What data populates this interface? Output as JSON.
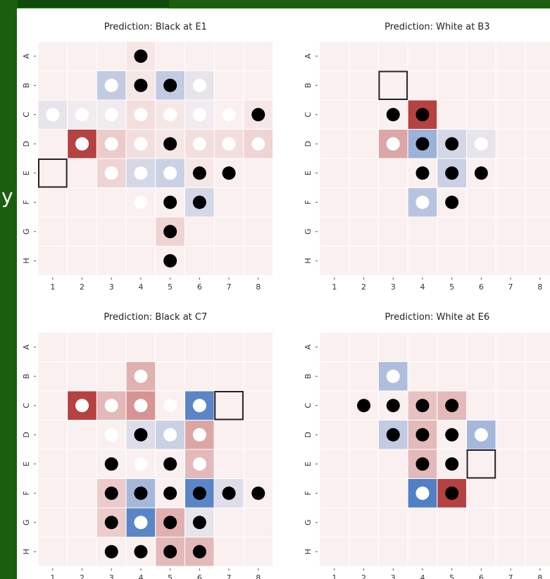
{
  "slide": {
    "partial_glyph": "y"
  },
  "colors": {
    "neutral_cell": "#faf0f0",
    "grid": "#ffffff",
    "red_strong": "#b23838",
    "red_medium": "#dba2a2",
    "red_light": "#f2d9d9",
    "blue_strong": "#3e73c0",
    "blue_medium": "#a5b7d6",
    "blue_light": "#d9e0ec",
    "piece_black": "#000000",
    "piece_white": "#ffffff",
    "move_box": "#222222"
  },
  "chart_data": [
    {
      "type": "heatmap",
      "title": "Prediction: Black at E1",
      "rows": [
        "A",
        "B",
        "C",
        "D",
        "E",
        "F",
        "G",
        "H"
      ],
      "cols": [
        "1",
        "2",
        "3",
        "4",
        "5",
        "6",
        "7",
        "8"
      ],
      "pieces": [
        [
          "",
          "",
          "",
          "b",
          "",
          "",
          "",
          ""
        ],
        [
          "",
          "",
          "w",
          "b",
          "b",
          "w",
          "",
          ""
        ],
        [
          "w",
          "w",
          "w",
          "w",
          "w",
          "w",
          "w",
          "b"
        ],
        [
          "",
          "w",
          "w",
          "w",
          "b",
          "w",
          "w",
          "w"
        ],
        [
          "",
          "",
          "w",
          "w",
          "w",
          "b",
          "b",
          ""
        ],
        [
          "",
          "",
          "",
          "w",
          "b",
          "b",
          "",
          ""
        ],
        [
          "",
          "",
          "",
          "",
          "b",
          "",
          "",
          ""
        ],
        [
          "",
          "",
          "",
          "",
          "b",
          "",
          "",
          ""
        ]
      ],
      "heat": [
        [
          0,
          0,
          0,
          0.05,
          0,
          0,
          0,
          0
        ],
        [
          0,
          0,
          -0.3,
          0.05,
          -0.3,
          -0.1,
          0,
          0
        ],
        [
          -0.1,
          -0.05,
          -0.05,
          0.1,
          0.05,
          -0.05,
          0,
          0.05
        ],
        [
          0,
          0.95,
          0.2,
          0.1,
          0.05,
          0.1,
          0.1,
          0.15
        ],
        [
          0,
          0,
          0.15,
          -0.2,
          -0.25,
          0.05,
          0,
          0
        ],
        [
          0,
          0,
          0,
          0,
          0,
          -0.2,
          0,
          0
        ],
        [
          0,
          0,
          0,
          0,
          0.15,
          0,
          0,
          0
        ],
        [
          0,
          0,
          0,
          0,
          0,
          0,
          0,
          0
        ]
      ],
      "move": {
        "row": "E",
        "col": "1"
      }
    },
    {
      "type": "heatmap",
      "title": "Prediction: White at B3",
      "rows": [
        "A",
        "B",
        "C",
        "D",
        "E",
        "F",
        "G",
        "H"
      ],
      "cols": [
        "1",
        "2",
        "3",
        "4",
        "5",
        "6",
        "7",
        "8"
      ],
      "pieces": [
        [
          "",
          "",
          "",
          "",
          "",
          "",
          "",
          ""
        ],
        [
          "",
          "",
          "",
          "",
          "",
          "",
          "",
          ""
        ],
        [
          "",
          "",
          "b",
          "b",
          "",
          "",
          "",
          ""
        ],
        [
          "",
          "",
          "w",
          "b",
          "b",
          "w",
          "",
          ""
        ],
        [
          "",
          "",
          "",
          "b",
          "b",
          "b",
          "",
          ""
        ],
        [
          "",
          "",
          "",
          "w",
          "b",
          "",
          "",
          ""
        ],
        [
          "",
          "",
          "",
          "",
          "",
          "",
          "",
          ""
        ],
        [
          "",
          "",
          "",
          "",
          "",
          "",
          "",
          ""
        ]
      ],
      "heat": [
        [
          0,
          0,
          0,
          0,
          0,
          0,
          0,
          0
        ],
        [
          0,
          0,
          0,
          0,
          0,
          0,
          0,
          0
        ],
        [
          0,
          0,
          0,
          0.95,
          0,
          0,
          0,
          0
        ],
        [
          0,
          0,
          0.4,
          -0.5,
          -0.2,
          -0.1,
          0,
          0
        ],
        [
          0,
          0,
          0,
          0,
          -0.25,
          0,
          0,
          0
        ],
        [
          0,
          0,
          0,
          -0.35,
          0,
          0,
          0,
          0
        ],
        [
          0,
          0,
          0,
          0,
          0,
          0,
          0,
          0
        ],
        [
          0,
          0,
          0,
          0,
          0,
          0,
          0,
          0
        ]
      ],
      "move": {
        "row": "B",
        "col": "3"
      }
    },
    {
      "type": "heatmap",
      "title": "Prediction: Black at C7",
      "rows": [
        "A",
        "B",
        "C",
        "D",
        "E",
        "F",
        "G",
        "H"
      ],
      "cols": [
        "1",
        "2",
        "3",
        "4",
        "5",
        "6",
        "7",
        "8"
      ],
      "pieces": [
        [
          "",
          "",
          "",
          "",
          "",
          "",
          "",
          ""
        ],
        [
          "",
          "",
          "",
          "w",
          "",
          "",
          "",
          ""
        ],
        [
          "",
          "w",
          "w",
          "w",
          "w",
          "w",
          "",
          ""
        ],
        [
          "",
          "",
          "w",
          "b",
          "w",
          "w",
          "",
          ""
        ],
        [
          "",
          "",
          "b",
          "w",
          "b",
          "w",
          "",
          ""
        ],
        [
          "",
          "",
          "b",
          "b",
          "b",
          "b",
          "b",
          "b"
        ],
        [
          "",
          "",
          "b",
          "w",
          "b",
          "b",
          "",
          ""
        ],
        [
          "",
          "",
          "b",
          "b",
          "b",
          "b",
          "",
          ""
        ]
      ],
      "heat": [
        [
          0,
          0,
          0,
          0,
          0,
          0,
          0,
          0
        ],
        [
          0,
          0,
          0,
          0.35,
          0,
          0,
          0,
          0
        ],
        [
          0,
          0.95,
          0.3,
          0.5,
          0,
          -0.85,
          0,
          0
        ],
        [
          0,
          0,
          0,
          -0.15,
          -0.25,
          0.4,
          0,
          0
        ],
        [
          0,
          0,
          0,
          0,
          0,
          0.3,
          0,
          0
        ],
        [
          0,
          0,
          0.2,
          -0.45,
          0,
          -0.85,
          -0.15,
          0
        ],
        [
          0,
          0,
          0.2,
          -0.85,
          0.35,
          -0.1,
          0,
          0
        ],
        [
          0,
          0,
          0,
          0,
          0.3,
          0.3,
          0,
          0
        ]
      ],
      "move": {
        "row": "C",
        "col": "7"
      }
    },
    {
      "type": "heatmap",
      "title": "Prediction: White at E6",
      "rows": [
        "A",
        "B",
        "C",
        "D",
        "E",
        "F",
        "G",
        "H"
      ],
      "cols": [
        "1",
        "2",
        "3",
        "4",
        "5",
        "6",
        "7",
        "8"
      ],
      "pieces": [
        [
          "",
          "",
          "",
          "",
          "",
          "",
          "",
          ""
        ],
        [
          "",
          "",
          "w",
          "",
          "",
          "",
          "",
          ""
        ],
        [
          "",
          "b",
          "b",
          "b",
          "b",
          "",
          "",
          ""
        ],
        [
          "",
          "",
          "b",
          "b",
          "b",
          "w",
          "",
          ""
        ],
        [
          "",
          "",
          "",
          "b",
          "b",
          "",
          "",
          ""
        ],
        [
          "",
          "",
          "",
          "w",
          "b",
          "",
          "",
          ""
        ],
        [
          "",
          "",
          "",
          "",
          "",
          "",
          "",
          ""
        ],
        [
          "",
          "",
          "",
          "",
          "",
          "",
          "",
          ""
        ]
      ],
      "heat": [
        [
          0,
          0,
          0,
          0,
          0,
          0,
          0,
          0
        ],
        [
          0,
          0,
          -0.4,
          0,
          0,
          0,
          0,
          0
        ],
        [
          0,
          0,
          0,
          0.25,
          0.3,
          0,
          0,
          0
        ],
        [
          0,
          0,
          -0.3,
          0.3,
          0,
          -0.45,
          0,
          0
        ],
        [
          0,
          0,
          0,
          0.3,
          0,
          0,
          0,
          0
        ],
        [
          0,
          0,
          0,
          -0.9,
          0.95,
          0,
          0,
          0
        ],
        [
          0,
          0,
          0,
          0,
          0,
          0,
          0,
          0
        ],
        [
          0,
          0,
          0,
          0,
          0,
          0,
          0,
          0
        ]
      ],
      "move": {
        "row": "E",
        "col": "6"
      }
    }
  ]
}
